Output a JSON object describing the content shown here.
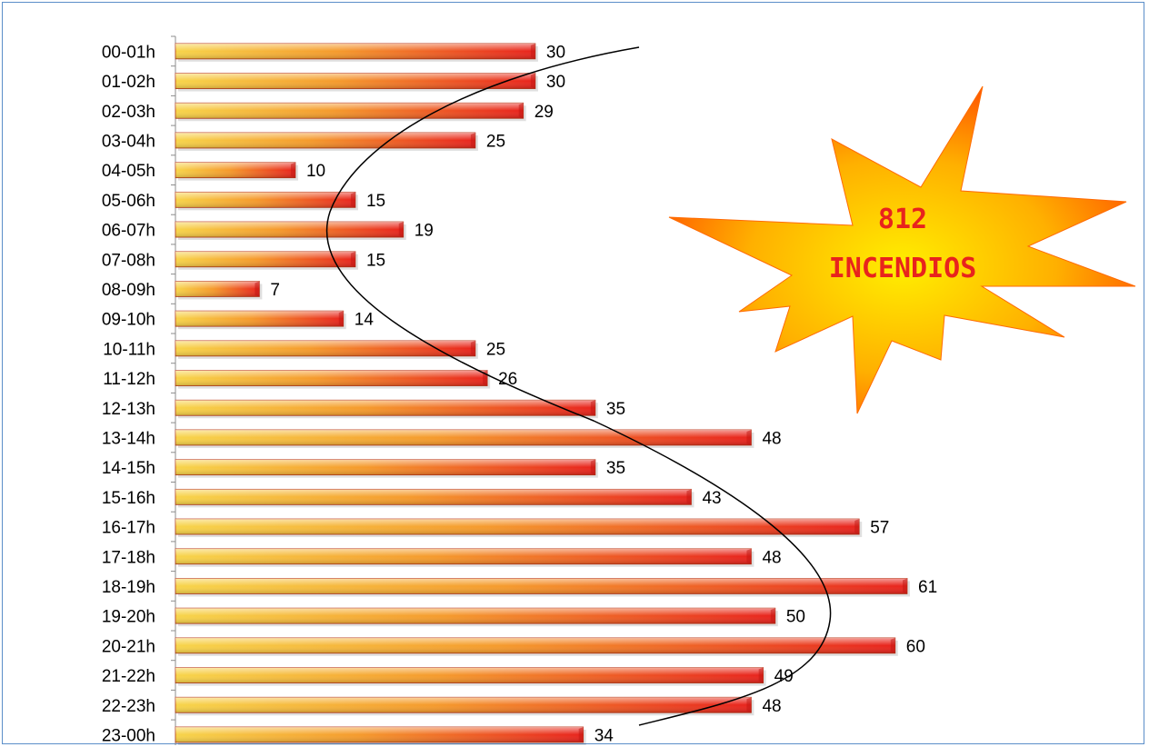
{
  "chart_data": {
    "type": "bar",
    "orientation": "horizontal",
    "categories": [
      "00-01h",
      "01-02h",
      "02-03h",
      "03-04h",
      "04-05h",
      "05-06h",
      "06-07h",
      "07-08h",
      "08-09h",
      "09-10h",
      "10-11h",
      "11-12h",
      "12-13h",
      "13-14h",
      "14-15h",
      "15-16h",
      "16-17h",
      "17-18h",
      "18-19h",
      "19-20h",
      "20-21h",
      "21-22h",
      "22-23h",
      "23-00h"
    ],
    "values": [
      30,
      30,
      29,
      25,
      10,
      15,
      19,
      15,
      7,
      14,
      25,
      26,
      35,
      48,
      35,
      43,
      57,
      48,
      61,
      50,
      60,
      49,
      48,
      34
    ],
    "xlim": [
      0,
      61
    ],
    "title": "",
    "xlabel": "",
    "ylabel": "",
    "trendline": "curve",
    "colors": {
      "bar_start": "#f5c842",
      "bar_end": "#e8231d",
      "frame": "#5b8ec9"
    }
  },
  "callout": {
    "line1": "812",
    "line2": "INCENDIOS",
    "colors": {
      "center": "#ffee00",
      "edge": "#ff4a00"
    }
  }
}
